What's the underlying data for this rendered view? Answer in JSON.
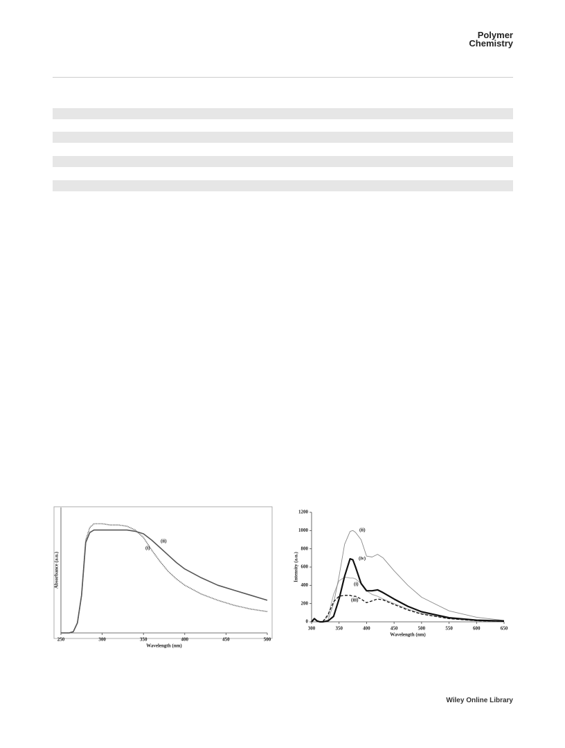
{
  "header": {
    "journal": [
      "Polymer",
      "Chemistry"
    ]
  },
  "footer": "Wiley Online Library",
  "chart_data": [
    {
      "type": "line",
      "xlabel": "Wavelength (nm)",
      "ylabel": "Absorbance (a.u.)",
      "x": [
        250,
        260,
        265,
        270,
        275,
        280,
        285,
        290,
        300,
        310,
        320,
        330,
        340,
        350,
        360,
        370,
        380,
        390,
        400,
        420,
        440,
        460,
        480,
        500
      ],
      "xlim": [
        250,
        500
      ],
      "xticks": [
        250,
        300,
        350,
        400,
        450,
        500
      ],
      "ylim": [
        0,
        1
      ],
      "series": [
        {
          "name": "(i)",
          "color": "#666666",
          "line_style": "dotted",
          "width": 1.6,
          "values": [
            0,
            0,
            0.01,
            0.08,
            0.3,
            0.74,
            0.84,
            0.87,
            0.87,
            0.86,
            0.86,
            0.85,
            0.82,
            0.76,
            0.66,
            0.57,
            0.49,
            0.43,
            0.38,
            0.31,
            0.26,
            0.22,
            0.19,
            0.17
          ]
        },
        {
          "name": "(ii)",
          "color": "#555555",
          "line_style": "solid",
          "width": 1.6,
          "values": [
            0,
            0,
            0.01,
            0.08,
            0.3,
            0.72,
            0.8,
            0.82,
            0.82,
            0.82,
            0.82,
            0.82,
            0.81,
            0.79,
            0.74,
            0.68,
            0.62,
            0.56,
            0.51,
            0.44,
            0.38,
            0.34,
            0.3,
            0.26
          ]
        }
      ]
    },
    {
      "type": "line",
      "xlabel": "Wavelength (nm)",
      "ylabel": "Intensity (a.u.)",
      "x": [
        300,
        305,
        310,
        315,
        320,
        330,
        340,
        350,
        360,
        370,
        375,
        380,
        390,
        400,
        410,
        420,
        430,
        450,
        475,
        500,
        550,
        600,
        650
      ],
      "xlim": [
        300,
        650
      ],
      "xticks": [
        300,
        350,
        400,
        450,
        500,
        550,
        600,
        650
      ],
      "ylim": [
        0,
        1200
      ],
      "yticks": [
        0,
        200,
        400,
        600,
        800,
        1000,
        1200
      ],
      "series": [
        {
          "name": "(i)",
          "color": "#b0b0b0",
          "line_style": "solid",
          "width": 1.2,
          "values": [
            0,
            30,
            10,
            0,
            0,
            60,
            300,
            450,
            490,
            480,
            480,
            470,
            420,
            340,
            300,
            280,
            250,
            200,
            140,
            90,
            35,
            12,
            5
          ]
        },
        {
          "name": "(ii)",
          "color": "#888888",
          "line_style": "solid",
          "width": 0.9,
          "values": [
            0,
            30,
            10,
            0,
            0,
            20,
            200,
            500,
            850,
            990,
            1000,
            980,
            900,
            720,
            710,
            740,
            700,
            560,
            400,
            270,
            120,
            50,
            15
          ]
        },
        {
          "name": "(iii)",
          "color": "#111111",
          "line_style": "dashed",
          "width": 1.3,
          "values": [
            0,
            30,
            10,
            0,
            0,
            80,
            220,
            280,
            290,
            290,
            280,
            280,
            250,
            210,
            230,
            250,
            240,
            190,
            130,
            85,
            35,
            12,
            5
          ]
        },
        {
          "name": "(iv)",
          "color": "#111111",
          "line_style": "solid",
          "width": 2.2,
          "values": [
            0,
            35,
            10,
            0,
            0,
            10,
            60,
            250,
            500,
            690,
            680,
            600,
            420,
            340,
            340,
            350,
            320,
            250,
            170,
            110,
            45,
            18,
            8
          ]
        }
      ]
    }
  ]
}
